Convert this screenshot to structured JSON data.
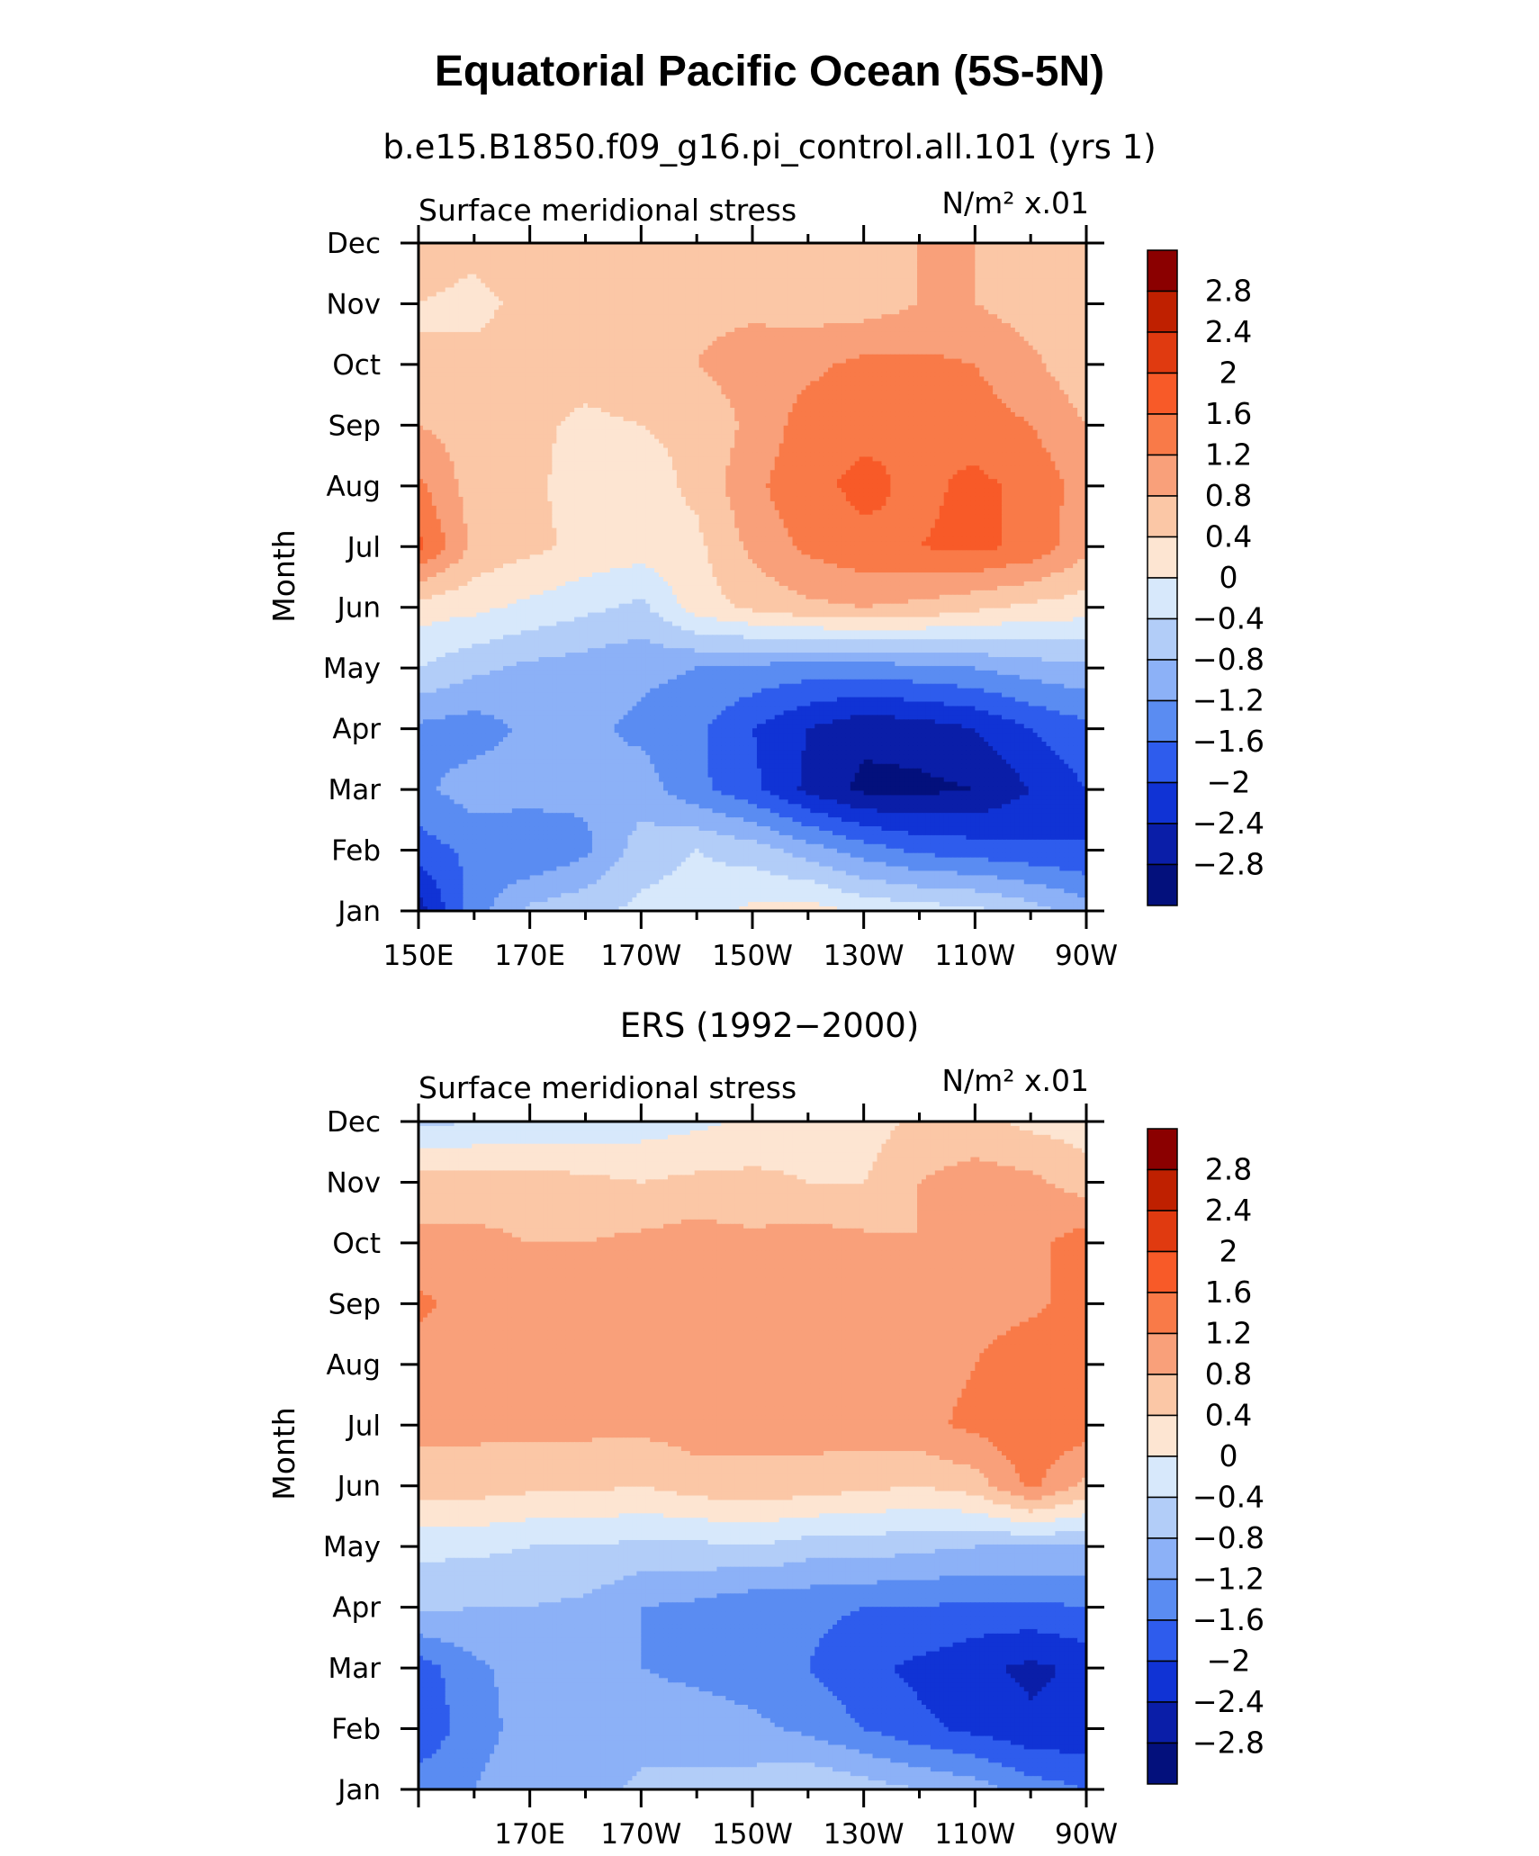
{
  "figure_title": "Equatorial Pacific Ocean (5S-5N)",
  "colorbar": {
    "levels": [
      "2.8",
      "2.4",
      "2",
      "1.6",
      "1.2",
      "0.8",
      "0.4",
      "0",
      "−0.4",
      "−0.8",
      "−1.2",
      "−1.6",
      "−2",
      "−2.4",
      "−2.8"
    ],
    "colors": [
      "#8b0000",
      "#bf2000",
      "#e03a10",
      "#f85a28",
      "#f97a48",
      "#f9a07a",
      "#fbc7a6",
      "#fde5d2",
      "#d7e8fb",
      "#b2cdf8",
      "#8cb1f7",
      "#5a8cf2",
      "#2e5ced",
      "#1033d5",
      "#0a1ea8",
      "#03107c"
    ]
  },
  "chart_data": [
    {
      "type": "heatmap",
      "title": "b.e15.B1850.f09_g16.pi_control.all.101 (yrs 1)",
      "left_label": "Surface meridional stress",
      "right_label": "N/m² x.01",
      "ylabel": "Month",
      "y_ticks": [
        "Jan",
        "Feb",
        "Mar",
        "Apr",
        "May",
        "Jun",
        "Jul",
        "Aug",
        "Sep",
        "Oct",
        "Nov",
        "Dec"
      ],
      "x_ticks": [
        "150E",
        "170E",
        "170W",
        "150W",
        "130W",
        "110W",
        "90W"
      ],
      "x_range_deg_east": [
        150,
        270
      ],
      "x_grid_deg_east": [
        150,
        160,
        170,
        180,
        190,
        200,
        210,
        220,
        230,
        240,
        250,
        260,
        270
      ],
      "z": [
        [
          -2.6,
          -1.4,
          -0.7,
          -0.5,
          -0.3,
          -0.2,
          0.1,
          0.2,
          -0.1,
          -0.2,
          -0.3,
          -0.6,
          -1.0
        ],
        [
          -1.8,
          -1.5,
          -1.6,
          -1.3,
          -0.6,
          -0.4,
          -0.6,
          -1.0,
          -1.4,
          -1.7,
          -1.8,
          -1.9,
          -2.0
        ],
        [
          -1.3,
          -1.0,
          -1.0,
          -1.1,
          -1.0,
          -1.5,
          -1.9,
          -2.5,
          -2.9,
          -2.9,
          -2.8,
          -2.4,
          -2.0
        ],
        [
          -1.3,
          -1.4,
          -1.1,
          -1.1,
          -1.3,
          -1.5,
          -2.0,
          -2.4,
          -2.7,
          -2.6,
          -2.4,
          -2.0,
          -1.7
        ],
        [
          -0.4,
          -0.7,
          -0.9,
          -1.0,
          -1.1,
          -1.2,
          -1.3,
          -1.4,
          -1.4,
          -1.3,
          -1.2,
          -1.0,
          -0.9
        ],
        [
          0.2,
          0.1,
          -0.1,
          -0.3,
          -0.5,
          0.2,
          0.5,
          0.7,
          0.8,
          0.7,
          0.5,
          0.3,
          0.2
        ],
        [
          1.7,
          0.7,
          0.5,
          0.3,
          0.2,
          0.3,
          0.9,
          1.3,
          1.5,
          1.6,
          1.7,
          1.5,
          0.9
        ],
        [
          1.3,
          0.6,
          0.5,
          0.2,
          0.2,
          0.5,
          1.1,
          1.5,
          1.7,
          1.5,
          1.7,
          1.5,
          1.0
        ],
        [
          0.8,
          0.6,
          0.5,
          0.3,
          0.4,
          0.5,
          0.9,
          1.4,
          1.5,
          1.6,
          1.4,
          1.2,
          0.8
        ],
        [
          0.4,
          0.5,
          0.6,
          0.6,
          0.7,
          0.8,
          1.0,
          1.1,
          1.3,
          1.3,
          1.2,
          0.9,
          0.5
        ],
        [
          0.4,
          0.3,
          0.5,
          0.6,
          0.6,
          0.7,
          0.7,
          0.6,
          0.6,
          0.8,
          0.8,
          0.6,
          0.5
        ],
        [
          0.6,
          0.5,
          0.6,
          0.4,
          0.6,
          0.6,
          0.7,
          0.6,
          0.6,
          0.8,
          0.8,
          0.7,
          0.6
        ]
      ]
    },
    {
      "type": "heatmap",
      "title": "ERS (1992−2000)",
      "left_label": "Surface meridional stress",
      "right_label": "N/m² x.01",
      "ylabel": "Month",
      "y_ticks": [
        "Jan",
        "Feb",
        "Mar",
        "Apr",
        "May",
        "Jun",
        "Jul",
        "Aug",
        "Sep",
        "Oct",
        "Nov",
        "Dec"
      ],
      "x_ticks": [
        "170E",
        "170W",
        "150W",
        "130W",
        "110W",
        "90W"
      ],
      "x_range_deg_east": [
        150,
        270
      ],
      "x_grid_deg_east": [
        150,
        160,
        170,
        180,
        190,
        200,
        210,
        220,
        230,
        240,
        250,
        260,
        270
      ],
      "z": [
        [
          -1.4,
          -1.2,
          -0.9,
          -1.0,
          -0.7,
          -0.7,
          -0.6,
          -0.4,
          -0.6,
          -0.8,
          -1.0,
          -1.4,
          -1.6
        ],
        [
          -1.9,
          -1.4,
          -1.0,
          -0.9,
          -1.0,
          -1.0,
          -1.1,
          -1.3,
          -1.6,
          -1.9,
          -2.1,
          -2.3,
          -2.3
        ],
        [
          -1.8,
          -1.3,
          -1.0,
          -1.0,
          -1.2,
          -1.3,
          -1.4,
          -1.6,
          -1.9,
          -2.1,
          -2.3,
          -2.5,
          -2.3
        ],
        [
          -0.7,
          -0.8,
          -0.8,
          -0.9,
          -1.2,
          -1.3,
          -1.5,
          -1.5,
          -1.6,
          -1.6,
          -1.7,
          -1.7,
          -1.6
        ],
        [
          -0.3,
          -0.3,
          -0.4,
          -0.4,
          -0.5,
          -0.5,
          -0.4,
          -0.6,
          -0.6,
          -0.7,
          -0.8,
          -0.8,
          -0.8
        ],
        [
          0.6,
          0.6,
          0.5,
          0.5,
          0.4,
          0.6,
          0.7,
          0.6,
          0.5,
          0.4,
          0.6,
          1.3,
          0.7
        ],
        [
          0.9,
          0.9,
          0.9,
          0.9,
          0.9,
          1.0,
          0.9,
          1.0,
          1.0,
          1.1,
          1.3,
          1.5,
          1.4
        ],
        [
          1.0,
          0.9,
          0.8,
          0.9,
          1.0,
          1.0,
          1.1,
          1.1,
          1.1,
          1.0,
          1.2,
          1.5,
          1.4
        ],
        [
          1.3,
          1.0,
          0.8,
          0.9,
          1.0,
          1.0,
          0.9,
          1.0,
          1.0,
          0.9,
          1.0,
          1.1,
          1.4
        ],
        [
          0.9,
          0.9,
          0.8,
          0.8,
          0.9,
          1.0,
          0.9,
          1.0,
          0.9,
          0.8,
          0.9,
          1.1,
          1.4
        ],
        [
          0.6,
          0.6,
          0.6,
          0.5,
          0.4,
          0.5,
          0.5,
          0.4,
          0.4,
          0.8,
          1.0,
          0.9,
          0.6
        ],
        [
          -0.5,
          -0.4,
          -0.3,
          -0.3,
          -0.2,
          -0.1,
          0.1,
          0.2,
          0.2,
          0.5,
          0.5,
          0.3,
          0.2
        ]
      ]
    }
  ]
}
